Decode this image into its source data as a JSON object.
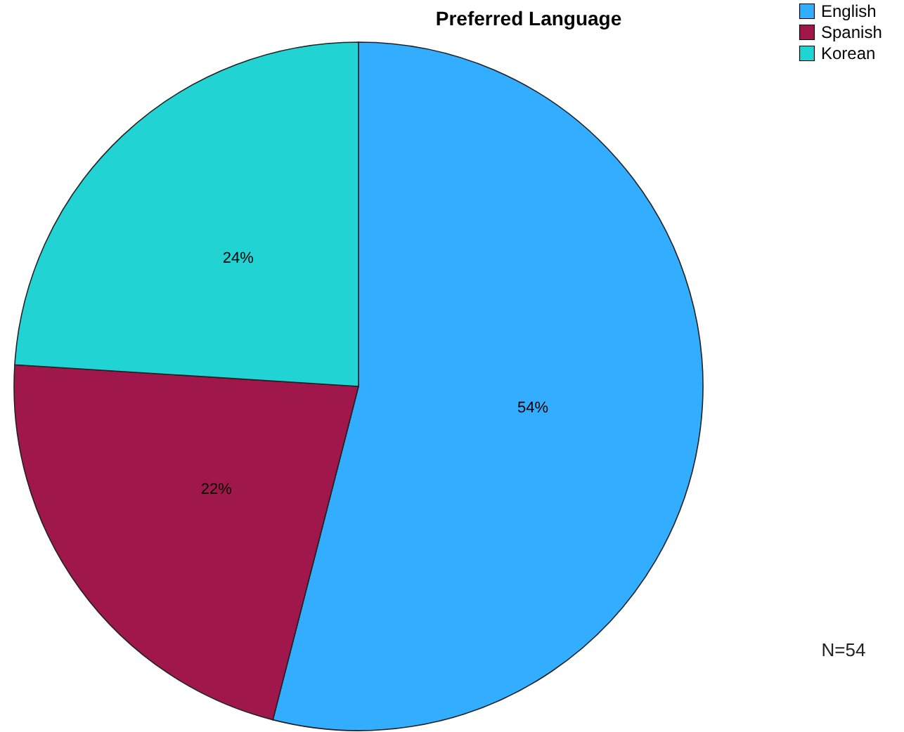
{
  "chart_data": {
    "type": "pie",
    "title": "Preferred Language",
    "categories": [
      "English",
      "Spanish",
      "Korean"
    ],
    "values": [
      54,
      22,
      24
    ],
    "colors": [
      "#33adff",
      "#a0174c",
      "#22d3d3"
    ],
    "value_labels": [
      "54%",
      "22%",
      "24%"
    ],
    "legend": "top right",
    "annotations": [
      "N=54"
    ]
  }
}
